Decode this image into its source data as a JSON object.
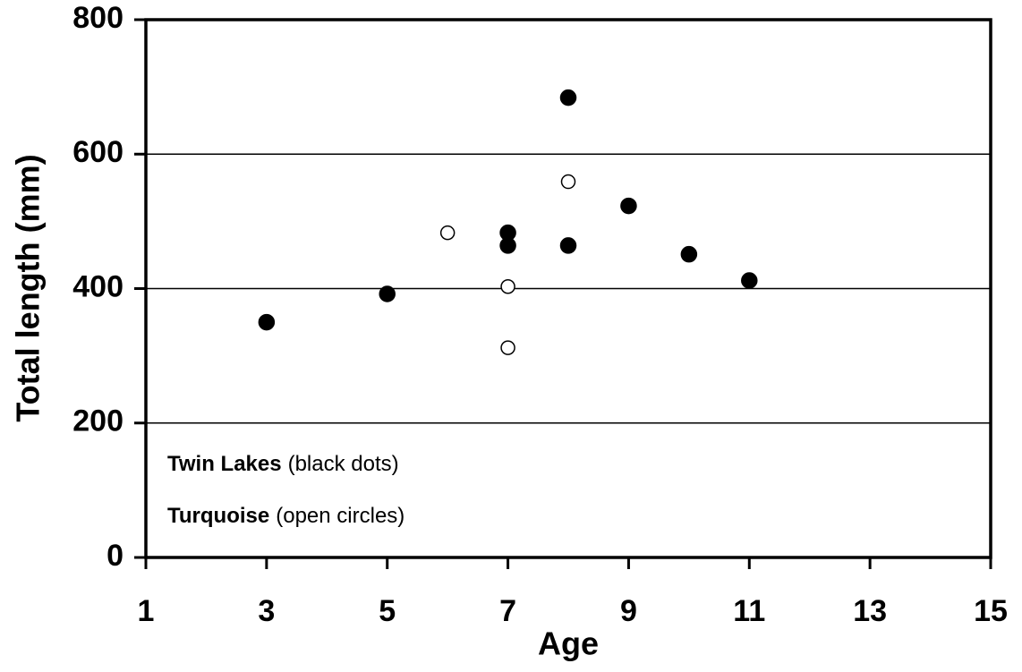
{
  "chart_data": {
    "type": "scatter",
    "xlabel": "Age",
    "ylabel": "Total length (mm)",
    "xlim": [
      1,
      15
    ],
    "xticks": [
      1,
      3,
      5,
      7,
      9,
      11,
      13,
      15
    ],
    "ylim": [
      0,
      800
    ],
    "yticks": [
      0,
      200,
      400,
      600,
      800
    ],
    "grid": true,
    "series": [
      {
        "name": "Twin Lakes",
        "note": "(black dots)",
        "color": "#000000",
        "marker": "filled",
        "x": [
          3,
          5,
          7,
          7,
          8,
          8,
          9,
          10,
          11
        ],
        "values": [
          350,
          392,
          483,
          464,
          684,
          464,
          523,
          451,
          412
        ]
      },
      {
        "name": "Turquoise",
        "note": "(open circles)",
        "color": "#000000",
        "marker": "open",
        "x": [
          6,
          8,
          7,
          7
        ],
        "values": [
          483,
          559,
          403,
          312
        ]
      }
    ]
  }
}
